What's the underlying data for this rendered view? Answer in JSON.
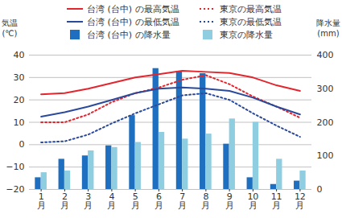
{
  "chart_data": {
    "type": "line",
    "categories": [
      "1月",
      "2月",
      "3月",
      "4月",
      "5月",
      "6月",
      "7月",
      "8月",
      "9月",
      "10月",
      "11月",
      "12月"
    ],
    "ylabel": "気温\n(℃)",
    "y2label": "降水量\n(mm)",
    "ylim": [
      -20,
      40
    ],
    "yticks": [
      -20,
      -10,
      0,
      10,
      20,
      30,
      40
    ],
    "y2lim": [
      0,
      400
    ],
    "y2ticks": [
      0,
      100,
      200,
      300,
      400
    ],
    "grid": true,
    "legend": "top",
    "series": [
      {
        "name": "台湾 (台中) の最高気温",
        "type": "line",
        "line_style": "solid",
        "color": "#e3262e",
        "values": [
          22.5,
          23,
          25,
          27.5,
          30,
          31.5,
          33,
          32.5,
          32,
          30,
          26.5,
          24
        ]
      },
      {
        "name": "東京の最高気温",
        "type": "line",
        "line_style": "dotted",
        "color": "#e3262e",
        "values": [
          10,
          10,
          13.5,
          19,
          23,
          25.5,
          29,
          31,
          27,
          21.5,
          17,
          12
        ]
      },
      {
        "name": "台湾 (台中) の最低気温",
        "type": "line",
        "line_style": "solid",
        "color": "#2b4a9b",
        "values": [
          12.5,
          14.5,
          17,
          20,
          23,
          25,
          25.5,
          25,
          24,
          21,
          17,
          13.5
        ]
      },
      {
        "name": "東京の最低気温",
        "type": "line",
        "line_style": "dotted",
        "color": "#2b4a9b",
        "values": [
          1,
          1.5,
          4.5,
          9.5,
          14,
          18,
          22,
          23,
          20,
          14,
          8.5,
          3.5
        ]
      },
      {
        "name": "台湾 (台中) の降水量",
        "type": "bar",
        "axis": "y2",
        "color": "#1f6fc0",
        "values": [
          35,
          90,
          100,
          130,
          220,
          360,
          350,
          345,
          135,
          35,
          15,
          25
        ]
      },
      {
        "name": "東京の降水量",
        "type": "bar",
        "axis": "y2",
        "color": "#8fcde0",
        "values": [
          50,
          55,
          115,
          125,
          140,
          170,
          150,
          165,
          210,
          200,
          90,
          55
        ]
      }
    ]
  }
}
